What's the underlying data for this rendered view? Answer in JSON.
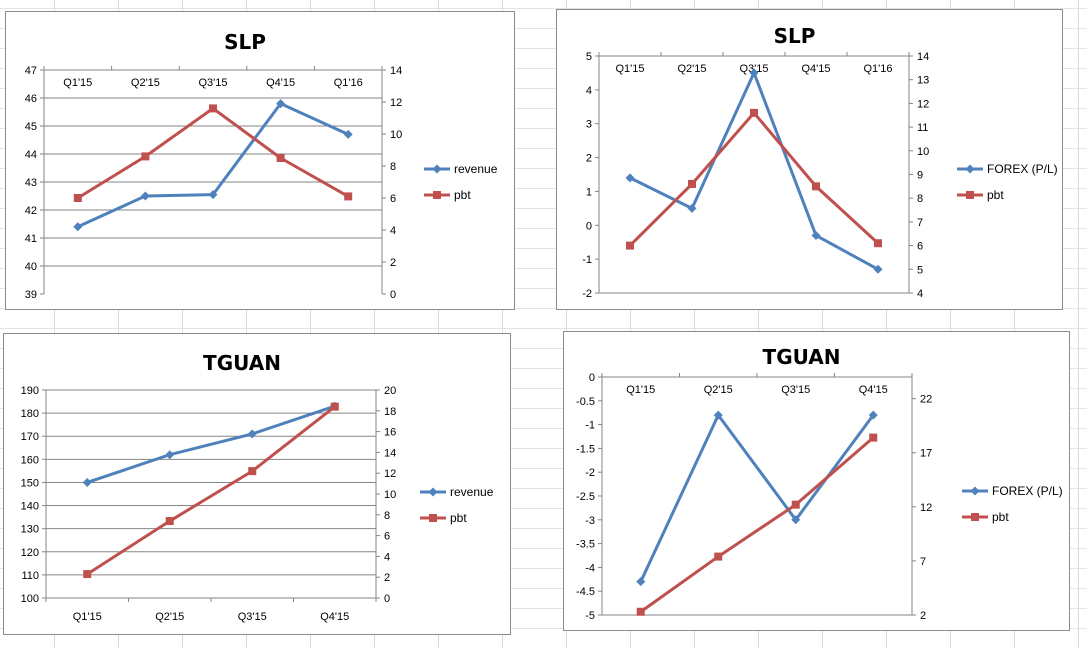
{
  "chart_data": [
    {
      "type": "line",
      "title": "SLP",
      "categories": [
        "Q1'15",
        "Q2'15",
        "Q3'15",
        "Q4'15",
        "Q1'16"
      ],
      "xlabel": "",
      "ylabel": "",
      "y_left": {
        "min": 39,
        "max": 47,
        "step": 1
      },
      "y_right": {
        "min": 0,
        "max": 14,
        "step": 2
      },
      "category_axis_position": "top",
      "grid": true,
      "legend_position": "right",
      "series": [
        {
          "name": "revenue",
          "axis": "left",
          "color": "#4f81bd",
          "marker": "diamond",
          "values": [
            41.4,
            42.5,
            42.55,
            45.8,
            44.7
          ]
        },
        {
          "name": "pbt",
          "axis": "right",
          "color": "#c0504d",
          "marker": "square",
          "values": [
            6.0,
            8.6,
            11.6,
            8.5,
            6.1
          ]
        }
      ]
    },
    {
      "type": "line",
      "title": "SLP",
      "categories": [
        "Q1'15",
        "Q2'15",
        "Q3'15",
        "Q4'15",
        "Q1'16"
      ],
      "xlabel": "",
      "ylabel": "",
      "y_left": {
        "min": -2,
        "max": 5,
        "step": 1
      },
      "y_right": {
        "min": 4,
        "max": 14,
        "step": 1
      },
      "category_axis_position": "top",
      "grid": false,
      "legend_position": "right",
      "series": [
        {
          "name": "FOREX (P/L)",
          "axis": "left",
          "color": "#4f81bd",
          "marker": "diamond",
          "values": [
            1.4,
            0.5,
            4.5,
            -0.3,
            -1.3
          ]
        },
        {
          "name": "pbt",
          "axis": "right",
          "color": "#c0504d",
          "marker": "square",
          "values": [
            6.0,
            8.6,
            11.6,
            8.5,
            6.1
          ]
        }
      ]
    },
    {
      "type": "line",
      "title": "TGUAN",
      "categories": [
        "Q1'15",
        "Q2'15",
        "Q3'15",
        "Q4'15"
      ],
      "xlabel": "",
      "ylabel": "",
      "y_left": {
        "min": 100,
        "max": 190,
        "step": 10
      },
      "y_right": {
        "min": 0,
        "max": 20,
        "step": 2
      },
      "category_axis_position": "bottom",
      "grid": true,
      "legend_position": "right",
      "series": [
        {
          "name": "revenue",
          "axis": "left",
          "color": "#4f81bd",
          "marker": "diamond",
          "values": [
            150,
            162,
            171,
            183
          ]
        },
        {
          "name": "pbt",
          "axis": "right",
          "color": "#c0504d",
          "marker": "square",
          "values": [
            2.3,
            7.4,
            12.2,
            18.4
          ]
        }
      ]
    },
    {
      "type": "line",
      "title": "TGUAN",
      "categories": [
        "Q1'15",
        "Q2'15",
        "Q3'15",
        "Q4'15"
      ],
      "xlabel": "",
      "ylabel": "",
      "y_left": {
        "min": -5,
        "max": 0,
        "step": 0.5
      },
      "y_right": {
        "min": 2,
        "max": 24,
        "ticks": [
          2,
          7,
          12,
          17,
          22
        ]
      },
      "category_axis_position": "top",
      "grid": false,
      "legend_position": "right",
      "series": [
        {
          "name": "FOREX (P/L)",
          "axis": "left",
          "color": "#4f81bd",
          "marker": "diamond",
          "values": [
            -4.3,
            -0.8,
            -3.0,
            -0.8
          ]
        },
        {
          "name": "pbt",
          "axis": "right",
          "color": "#c0504d",
          "marker": "square",
          "values": [
            2.3,
            7.4,
            12.2,
            18.4
          ]
        }
      ]
    }
  ]
}
